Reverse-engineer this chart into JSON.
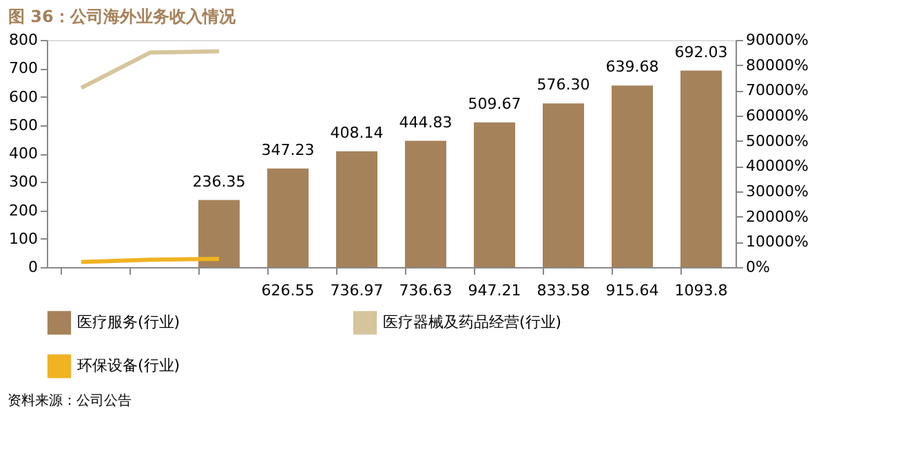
{
  "chart_data": {
    "type": "bar",
    "title": "图 36：公司海外业务收入情况",
    "categories": [
      null,
      null,
      null,
      "626.55",
      "736.97",
      "736.63",
      "947.21",
      "833.58",
      "915.64",
      "1093.8"
    ],
    "series": [
      {
        "name": "医疗服务(行业)",
        "color": "#a6825a",
        "values": [
          null,
          null,
          236.35,
          347.23,
          408.14,
          444.83,
          509.67,
          576.3,
          639.68,
          692.03
        ],
        "value_labels": [
          null,
          null,
          "236.35",
          "347.23",
          "408.14",
          "444.83",
          "509.67",
          "576.30",
          "639.68",
          "692.03"
        ]
      },
      {
        "name": "医疗器械及药品经营(行业)",
        "type": "line",
        "axis": "y2",
        "color": "#d6c59c",
        "values": [
          71000,
          85000,
          85500,
          null,
          null,
          null,
          null,
          null,
          null,
          null
        ]
      },
      {
        "name": "环保设备(行业)",
        "type": "line",
        "color": "#f0b323",
        "values": [
          18,
          26,
          29,
          null,
          null,
          null,
          null,
          null,
          null,
          null
        ]
      }
    ],
    "ylim": [
      0,
      800
    ],
    "yticks": [
      0,
      100,
      200,
      300,
      400,
      500,
      600,
      700,
      800
    ],
    "y2lim": [
      0,
      90000
    ],
    "y2ticks": [
      {
        "value": 0,
        "label": "0%"
      },
      {
        "value": 10000,
        "label": "10000%"
      },
      {
        "value": 20000,
        "label": "20000%"
      },
      {
        "value": 30000,
        "label": "30000%"
      },
      {
        "value": 40000,
        "label": "40000%"
      },
      {
        "value": 50000,
        "label": "50000%"
      },
      {
        "value": 60000,
        "label": "60000%"
      },
      {
        "value": 70000,
        "label": "70000%"
      },
      {
        "value": 80000,
        "label": "80000%"
      },
      {
        "value": 90000,
        "label": "90000%"
      }
    ],
    "grid": false,
    "legend": "bottom",
    "annotations": [
      "资料来源：公司公告"
    ]
  }
}
